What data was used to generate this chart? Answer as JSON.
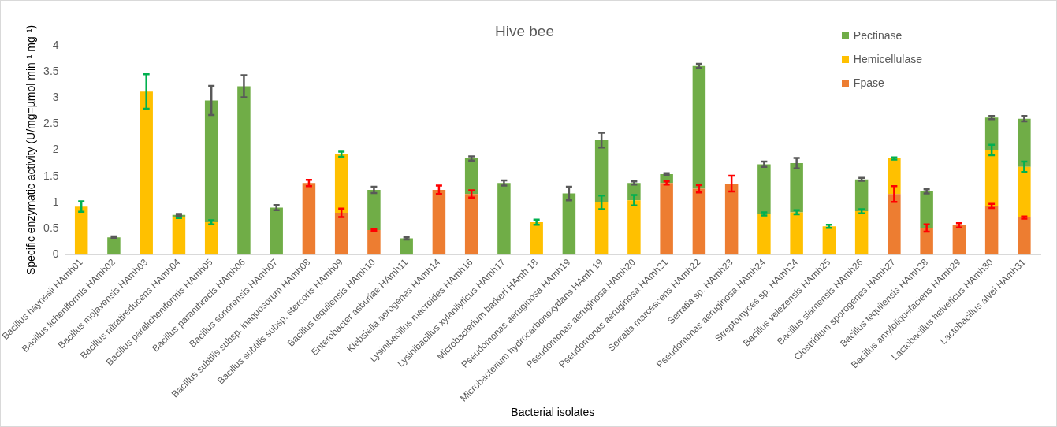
{
  "chart_data": {
    "type": "bar",
    "title": "Hive bee",
    "xlabel": "Bacterial isolates",
    "ylabel": "Specific enzymatic activity (U/mg=µmol min⁻¹ mg⁻¹)",
    "categories": [
      "Bacillus haynesii HAmh01",
      "Bacillus licheniformis HAmh02",
      "Bacillus mojavensis HAmh03",
      "Bacillus nitratireducens HAmh04",
      "Bacillus paralicheniformis HAmh05",
      "Bacillus paranthracis HAmh06",
      "Bacillus sonorensis HAmh07",
      "Bacillus subtilis subsp. inaquosorum HAmh08",
      "Bacillus subtilis subsp. stercoris HAmh09",
      "Bacillus tequilensis HAmh10",
      "Enterobacter asburiae HAmh11",
      "Klebsiella aerogenes HAmh14",
      "Lysinibacillus macroides HAmh16",
      "Lysinibacillus xylanilyticus HAmh17",
      "Microbacterium barkeri HAmh 18",
      "Pseudomonas aeruginosa HAmh19",
      "Microbacterium hydrocarbonoxydans HAmh 19",
      "Pseudomonas aeruginosa HAmh20",
      "Pseudomonas aeruginosa HAmh21",
      "Serratia marcescens HAmh22",
      "Serratia sp. HAmh23",
      "Pseudomonas aeruginosa HAmh24",
      "Streptomyces sp. HAmh24",
      "Bacillus velezensis HAmh25",
      "Bacillus siamensis HAmh26",
      "Clostridium sporogenes HAmh27",
      "Bacillus tequilensis HAmh28",
      "Bacillus amyloliquefaciens HAmh29",
      "Lactobacillus helveticus HAmh30",
      "Lactobacillus alvei HAmh31"
    ],
    "stacked": true,
    "series": [
      {
        "name": "Fpase",
        "color": "#ed7d31",
        "values": [
          null,
          null,
          null,
          null,
          null,
          null,
          null,
          1.37,
          0.8,
          0.47,
          null,
          1.24,
          1.16,
          null,
          null,
          null,
          null,
          null,
          1.37,
          1.26,
          1.36,
          null,
          null,
          null,
          null,
          1.16,
          0.51,
          0.56,
          0.93,
          0.71
        ],
        "errors": [
          null,
          null,
          null,
          null,
          null,
          null,
          null,
          0.06,
          0.08,
          0.02,
          null,
          0.08,
          0.07,
          null,
          null,
          null,
          null,
          null,
          0.03,
          0.07,
          0.15,
          null,
          null,
          null,
          null,
          0.15,
          0.07,
          0.04,
          0.04,
          0.02
        ]
      },
      {
        "name": "Hemicellulase",
        "color": "#ffc000",
        "values": [
          0.92,
          null,
          3.12,
          0.72,
          0.62,
          null,
          null,
          null,
          1.12,
          null,
          null,
          null,
          null,
          null,
          0.62,
          null,
          1.0,
          1.04,
          null,
          null,
          null,
          0.78,
          0.81,
          0.54,
          0.83,
          0.68,
          null,
          null,
          1.07,
          0.97
        ],
        "errors": [
          0.1,
          null,
          0.33,
          0.02,
          0.04,
          null,
          null,
          null,
          0.05,
          null,
          null,
          null,
          null,
          null,
          0.05,
          null,
          0.13,
          0.1,
          null,
          null,
          null,
          0.03,
          0.04,
          0.03,
          0.04,
          0.02,
          null,
          null,
          0.1,
          0.1
        ]
      },
      {
        "name": "Pectinase",
        "color": "#70ad47",
        "values": [
          null,
          0.33,
          null,
          0.04,
          2.33,
          3.22,
          0.9,
          null,
          null,
          0.77,
          0.31,
          null,
          0.68,
          1.37,
          null,
          1.17,
          1.19,
          0.33,
          0.17,
          2.35,
          null,
          0.95,
          0.94,
          null,
          0.61,
          null,
          0.7,
          null,
          0.62,
          0.92
        ],
        "errors": [
          null,
          0.02,
          null,
          0.02,
          0.28,
          0.21,
          0.05,
          null,
          null,
          0.06,
          0.02,
          null,
          0.04,
          0.05,
          null,
          0.13,
          0.14,
          0.03,
          0.02,
          0.04,
          null,
          0.05,
          0.1,
          null,
          0.03,
          null,
          0.04,
          null,
          0.03,
          0.05
        ]
      }
    ],
    "ylim": [
      0,
      4
    ],
    "yticks": [
      0,
      0.5,
      1,
      1.5,
      2,
      2.5,
      3,
      3.5,
      4
    ],
    "legend": "top right"
  }
}
